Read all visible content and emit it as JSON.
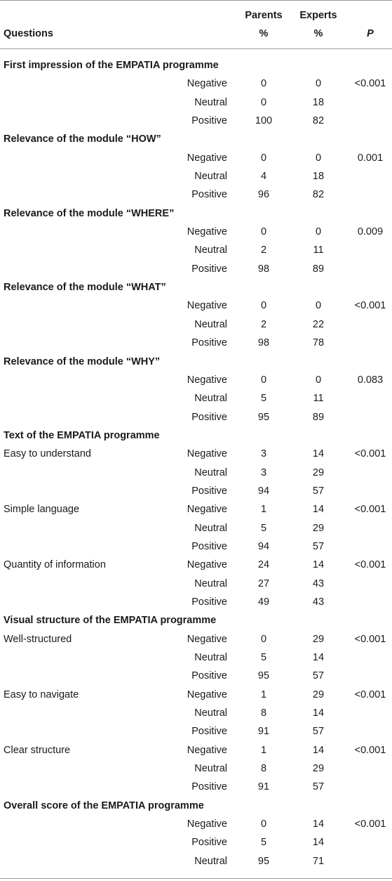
{
  "header": {
    "questions": "Questions",
    "parents_line1": "Parents",
    "parents_line2": "%",
    "experts_line1": "Experts",
    "experts_line2": "%",
    "p": "P"
  },
  "rows": [
    {
      "type": "section",
      "label": "First impression of the EMPATIA programme"
    },
    {
      "type": "data",
      "label": "",
      "category": "Negative",
      "parents": "0",
      "experts": "0",
      "p": "<0.001"
    },
    {
      "type": "data",
      "label": "",
      "category": "Neutral",
      "parents": "0",
      "experts": "18",
      "p": ""
    },
    {
      "type": "data",
      "label": "",
      "category": "Positive",
      "parents": "100",
      "experts": "82",
      "p": ""
    },
    {
      "type": "section",
      "label": "Relevance of the module “HOW”"
    },
    {
      "type": "data",
      "label": "",
      "category": "Negative",
      "parents": "0",
      "experts": "0",
      "p": "0.001"
    },
    {
      "type": "data",
      "label": "",
      "category": "Neutral",
      "parents": "4",
      "experts": "18",
      "p": ""
    },
    {
      "type": "data",
      "label": "",
      "category": "Positive",
      "parents": "96",
      "experts": "82",
      "p": ""
    },
    {
      "type": "section",
      "label": "Relevance of the module “WHERE”"
    },
    {
      "type": "data",
      "label": "",
      "category": "Negative",
      "parents": "0",
      "experts": "0",
      "p": "0.009"
    },
    {
      "type": "data",
      "label": "",
      "category": "Neutral",
      "parents": "2",
      "experts": "11",
      "p": ""
    },
    {
      "type": "data",
      "label": "",
      "category": "Positive",
      "parents": "98",
      "experts": "89",
      "p": ""
    },
    {
      "type": "section",
      "label": "Relevance of the module “WHAT”"
    },
    {
      "type": "data",
      "label": "",
      "category": "Negative",
      "parents": "0",
      "experts": "0",
      "p": "<0.001"
    },
    {
      "type": "data",
      "label": "",
      "category": "Neutral",
      "parents": "2",
      "experts": "22",
      "p": ""
    },
    {
      "type": "data",
      "label": "",
      "category": "Positive",
      "parents": "98",
      "experts": "78",
      "p": ""
    },
    {
      "type": "section",
      "label": "Relevance of the module “WHY”"
    },
    {
      "type": "data",
      "label": "",
      "category": "Negative",
      "parents": "0",
      "experts": "0",
      "p": "0.083"
    },
    {
      "type": "data",
      "label": "",
      "category": "Neutral",
      "parents": "5",
      "experts": "11",
      "p": ""
    },
    {
      "type": "data",
      "label": "",
      "category": "Positive",
      "parents": "95",
      "experts": "89",
      "p": ""
    },
    {
      "type": "section",
      "label": "Text of the EMPATIA programme"
    },
    {
      "type": "data",
      "label": "Easy to understand",
      "category": "Negative",
      "parents": "3",
      "experts": "14",
      "p": "<0.001"
    },
    {
      "type": "data",
      "label": "",
      "category": "Neutral",
      "parents": "3",
      "experts": "29",
      "p": ""
    },
    {
      "type": "data",
      "label": "",
      "category": "Positive",
      "parents": "94",
      "experts": "57",
      "p": ""
    },
    {
      "type": "data",
      "label": "Simple language",
      "category": "Negative",
      "parents": "1",
      "experts": "14",
      "p": "<0.001"
    },
    {
      "type": "data",
      "label": "",
      "category": "Neutral",
      "parents": "5",
      "experts": "29",
      "p": ""
    },
    {
      "type": "data",
      "label": "",
      "category": "Positive",
      "parents": "94",
      "experts": "57",
      "p": ""
    },
    {
      "type": "data",
      "label": "Quantity of information",
      "category": "Negative",
      "parents": "24",
      "experts": "14",
      "p": "<0.001"
    },
    {
      "type": "data",
      "label": "",
      "category": "Neutral",
      "parents": "27",
      "experts": "43",
      "p": ""
    },
    {
      "type": "data",
      "label": "",
      "category": "Positive",
      "parents": "49",
      "experts": "43",
      "p": ""
    },
    {
      "type": "section",
      "label": "Visual structure of the EMPATIA programme"
    },
    {
      "type": "data",
      "label": "Well-structured",
      "category": "Negative",
      "parents": "0",
      "experts": "29",
      "p": "<0.001"
    },
    {
      "type": "data",
      "label": "",
      "category": "Neutral",
      "parents": "5",
      "experts": "14",
      "p": ""
    },
    {
      "type": "data",
      "label": "",
      "category": "Positive",
      "parents": "95",
      "experts": "57",
      "p": ""
    },
    {
      "type": "data",
      "label": "Easy to navigate",
      "category": "Negative",
      "parents": "1",
      "experts": "29",
      "p": "<0.001"
    },
    {
      "type": "data",
      "label": "",
      "category": "Neutral",
      "parents": "8",
      "experts": "14",
      "p": ""
    },
    {
      "type": "data",
      "label": "",
      "category": "Positive",
      "parents": "91",
      "experts": "57",
      "p": ""
    },
    {
      "type": "data",
      "label": "Clear structure",
      "category": "Negative",
      "parents": "1",
      "experts": "14",
      "p": "<0.001"
    },
    {
      "type": "data",
      "label": "",
      "category": "Neutral",
      "parents": "8",
      "experts": "29",
      "p": ""
    },
    {
      "type": "data",
      "label": "",
      "category": "Positive",
      "parents": "91",
      "experts": "57",
      "p": ""
    },
    {
      "type": "section",
      "label": "Overall score of the EMPATIA programme"
    },
    {
      "type": "data",
      "label": "",
      "category": "Negative",
      "parents": "0",
      "experts": "14",
      "p": "<0.001"
    },
    {
      "type": "data",
      "label": "",
      "category": "Positive",
      "parents": "5",
      "experts": "14",
      "p": ""
    },
    {
      "type": "data",
      "label": "",
      "category": "Neutral",
      "parents": "95",
      "experts": "71",
      "p": ""
    }
  ]
}
